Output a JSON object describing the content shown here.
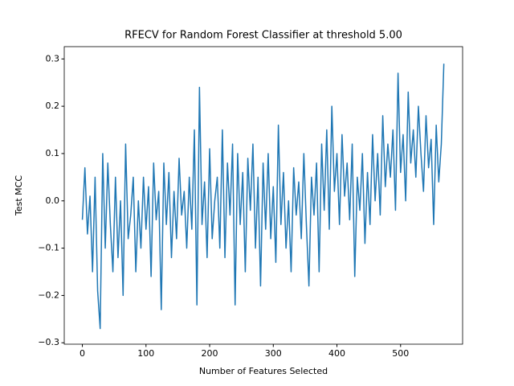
{
  "chart_data": {
    "type": "line",
    "title": "RFECV for Random Forest Classifier at threshold 5.00",
    "xlabel": "Number of Features Selected",
    "ylabel": "Test MCC",
    "x": [
      0,
      4,
      8,
      12,
      16,
      20,
      24,
      28,
      32,
      36,
      40,
      44,
      48,
      52,
      56,
      60,
      64,
      68,
      72,
      76,
      80,
      84,
      88,
      92,
      96,
      100,
      104,
      108,
      112,
      116,
      120,
      124,
      128,
      132,
      136,
      140,
      144,
      148,
      152,
      156,
      160,
      164,
      168,
      172,
      176,
      180,
      184,
      188,
      192,
      196,
      200,
      204,
      208,
      212,
      216,
      220,
      224,
      228,
      232,
      236,
      240,
      244,
      248,
      252,
      256,
      260,
      264,
      268,
      272,
      276,
      280,
      284,
      288,
      292,
      296,
      300,
      304,
      308,
      312,
      316,
      320,
      324,
      328,
      332,
      336,
      340,
      344,
      348,
      352,
      356,
      360,
      364,
      368,
      372,
      376,
      380,
      384,
      388,
      392,
      396,
      400,
      404,
      408,
      412,
      416,
      420,
      424,
      428,
      432,
      436,
      440,
      444,
      448,
      452,
      456,
      460,
      464,
      468,
      472,
      476,
      480,
      484,
      488,
      492,
      496,
      500,
      504,
      508,
      512,
      516,
      520,
      524,
      528,
      532,
      536,
      540,
      544,
      548,
      552,
      556,
      560,
      564,
      568
    ],
    "series": [
      {
        "name": "Test MCC",
        "color": "#1f77b4",
        "values": [
          -0.04,
          0.07,
          -0.07,
          0.01,
          -0.15,
          0.05,
          -0.19,
          -0.27,
          0.1,
          -0.1,
          0.08,
          -0.05,
          -0.15,
          0.05,
          -0.12,
          0.0,
          -0.2,
          0.12,
          -0.08,
          -0.03,
          0.05,
          -0.15,
          0.0,
          -0.1,
          0.05,
          -0.06,
          0.03,
          -0.16,
          0.08,
          -0.04,
          0.02,
          -0.23,
          0.08,
          -0.05,
          0.06,
          -0.12,
          0.02,
          -0.08,
          0.09,
          -0.03,
          0.02,
          -0.1,
          0.05,
          -0.06,
          0.15,
          -0.22,
          0.24,
          -0.05,
          0.04,
          -0.12,
          0.11,
          -0.08,
          0.0,
          0.05,
          -0.1,
          0.15,
          -0.12,
          0.08,
          -0.03,
          0.12,
          -0.22,
          0.1,
          -0.05,
          0.06,
          -0.15,
          0.09,
          -0.02,
          0.12,
          -0.1,
          0.05,
          -0.18,
          0.08,
          -0.06,
          0.1,
          -0.08,
          0.03,
          -0.13,
          0.16,
          -0.05,
          0.06,
          -0.1,
          0.0,
          -0.15,
          0.07,
          -0.03,
          0.04,
          -0.08,
          0.1,
          -0.05,
          -0.18,
          0.05,
          -0.03,
          0.08,
          -0.15,
          0.12,
          -0.02,
          0.15,
          -0.06,
          0.2,
          0.02,
          0.1,
          -0.05,
          0.14,
          0.01,
          0.08,
          -0.04,
          0.12,
          -0.16,
          0.05,
          -0.02,
          0.1,
          -0.09,
          0.06,
          -0.05,
          0.14,
          0.0,
          0.1,
          -0.03,
          0.18,
          0.03,
          0.12,
          0.05,
          0.15,
          -0.02,
          0.27,
          0.06,
          0.14,
          0.0,
          0.23,
          0.08,
          0.15,
          0.05,
          0.2,
          0.1,
          0.02,
          0.18,
          0.07,
          0.13,
          -0.05,
          0.16,
          0.04,
          0.12,
          0.29
        ]
      }
    ],
    "xlim": [
      -28.45,
      597.45
    ],
    "ylim": [
      -0.303,
      0.326
    ],
    "xticks": [
      0,
      100,
      200,
      300,
      400,
      500
    ],
    "yticks": [
      {
        "value": -0.3,
        "label": "−0.3"
      },
      {
        "value": -0.2,
        "label": "−0.2"
      },
      {
        "value": -0.1,
        "label": "−0.1"
      },
      {
        "value": 0,
        "label": "0.0"
      },
      0.1,
      0.2,
      0.3
    ]
  }
}
